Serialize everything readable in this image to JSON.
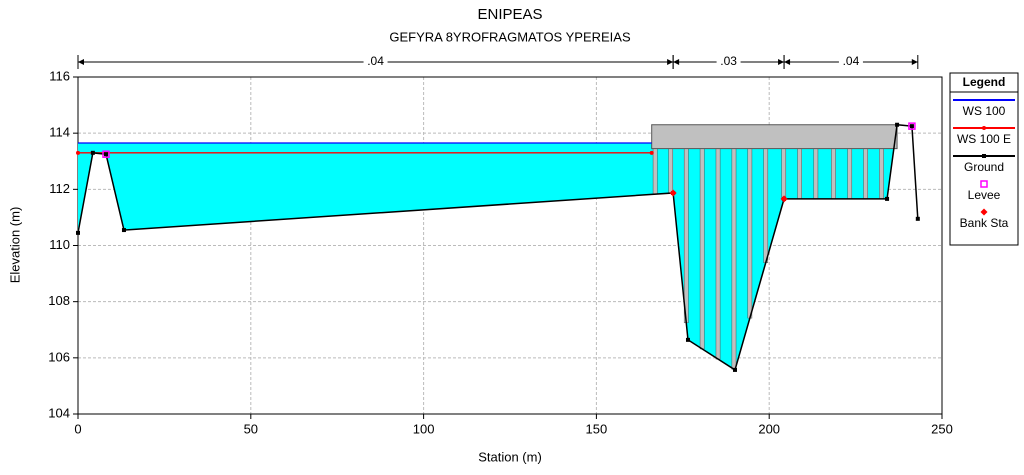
{
  "chart_data": {
    "type": "cross-section",
    "title": "ENIPEAS",
    "subtitle": "GEFYRA 8YROFRAGMATOS YPEREIAS",
    "x_label": "Station (m)",
    "y_label": "Elevation (m)",
    "xlim": [
      0,
      250
    ],
    "ylim": [
      104,
      116
    ],
    "xticks": [
      0,
      50,
      100,
      150,
      200,
      250
    ],
    "yticks": [
      104,
      106,
      108,
      110,
      112,
      114,
      116
    ],
    "grid": true,
    "water_color": "#00ffff",
    "legend_title": "Legend",
    "series": [
      {
        "name": "WS 100",
        "color": "#0000ff",
        "marker": "none",
        "x": [
          0,
          166
        ],
        "values": [
          113.65,
          113.65
        ]
      },
      {
        "name": "WS 100 E",
        "color": "#ff0000",
        "marker": "dot",
        "x": [
          0,
          166
        ],
        "values": [
          113.3,
          113.3
        ]
      },
      {
        "name": "Ground",
        "color": "#000000",
        "marker": "square",
        "x": [
          0,
          4.3,
          8.1,
          13.3,
          172.2,
          176.5,
          190.1,
          204.3,
          234.1,
          237,
          241.3,
          243
        ],
        "values": [
          110.45,
          113.3,
          113.25,
          110.55,
          111.87,
          106.64,
          105.57,
          111.66,
          111.66,
          114.3,
          114.25,
          110.95
        ]
      },
      {
        "name": "Levee",
        "color": "#ff00ff",
        "marker": "open-square",
        "x": [
          8.1,
          241.3
        ],
        "values": [
          113.25,
          114.25
        ]
      },
      {
        "name": "Bank Sta",
        "color": "#ff0000",
        "marker": "diamond",
        "x": [
          172.2,
          204.3
        ],
        "values": [
          111.87,
          111.66
        ]
      }
    ],
    "bridge": {
      "color": "#c0c0c0",
      "deck_x": [
        166,
        237
      ],
      "deck_top": 114.3,
      "deck_bottom": 113.45,
      "pier_width": 1.2,
      "piers": [
        167,
        171.5,
        176,
        180.6,
        185.2,
        189.8,
        194.4,
        199,
        204.2,
        208.8,
        213.5,
        218.6,
        223.3,
        227.9,
        232.5
      ]
    },
    "n_values": [
      {
        "n": {
          "value": 0.04,
          "label": ".04"
        },
        "from": 0,
        "to": 172.2
      },
      {
        "n": {
          "value": 0.03,
          "label": ".03"
        },
        "from": 172.2,
        "to": 204.3
      },
      {
        "n": {
          "value": 0.04,
          "label": ".04"
        },
        "from": 204.3,
        "to": 243
      }
    ]
  }
}
